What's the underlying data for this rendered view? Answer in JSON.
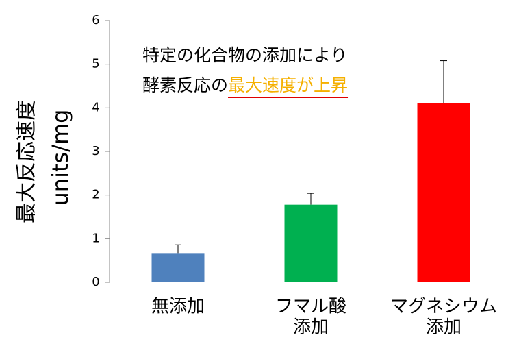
{
  "chart_data": {
    "type": "bar",
    "y_label": [
      "最大反応速度",
      "units/mg"
    ],
    "annotation": {
      "lines": [
        "特定の化合物の添加により",
        "酵素反応の"
      ],
      "highlight": "最大速度が上昇"
    },
    "categories": [
      [
        "無添加"
      ],
      [
        "フマル酸",
        "添加"
      ],
      [
        "マグネシウム",
        "添加"
      ]
    ],
    "values": [
      0.67,
      1.78,
      4.1
    ],
    "errors": [
      0.19,
      0.26,
      0.98
    ],
    "colors": [
      "#4f81bd",
      "#00b050",
      "#ff0000"
    ],
    "ylim": [
      0,
      6
    ],
    "yticks": [
      0,
      1,
      2,
      3,
      4,
      5,
      6
    ]
  }
}
